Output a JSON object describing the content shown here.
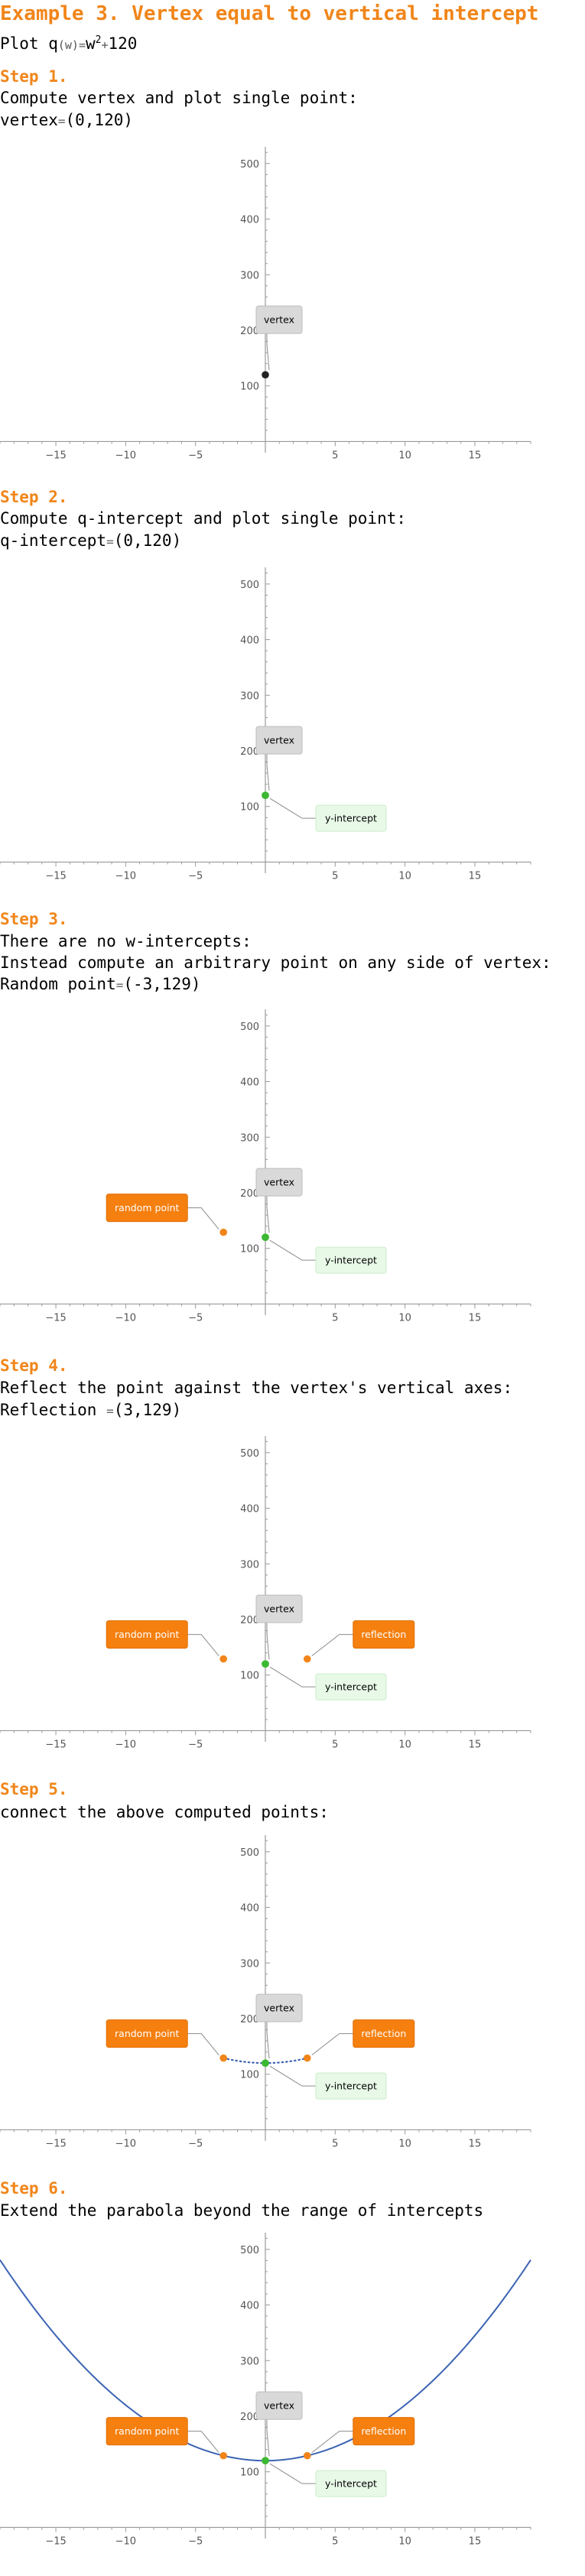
{
  "title": "Example 3. Vertex equal to vertical intercept",
  "subtitle": {
    "prefix": "Plot q",
    "arg": "(w)",
    "eq": "=",
    "rhs_base": "w",
    "rhs_exp": "2",
    "rhs_plus": "+",
    "rhs_const": "120"
  },
  "steps": [
    {
      "label": "Step 1.",
      "lines": [
        {
          "text": "Compute vertex and plot single point:"
        },
        {
          "text": "vertex",
          "eq": "=",
          "val": "(0,120)"
        }
      ]
    },
    {
      "label": "Step 2.",
      "lines": [
        {
          "text": "Compute q-intercept and plot single point:"
        },
        {
          "text": "q-intercept",
          "eq": "=",
          "val": "(0,120)"
        }
      ]
    },
    {
      "label": "Step 3.",
      "lines": [
        {
          "text": "There are no w-intercepts:"
        },
        {
          "text": "Instead compute an arbitrary point on any side of vertex:"
        },
        {
          "text": "Random point",
          "eq": "=",
          "val": "(-3,129)"
        }
      ]
    },
    {
      "label": "Step 4.",
      "lines": [
        {
          "text": "Reflect the point against the vertex's vertical axes:"
        },
        {
          "text": "Reflection ",
          "eq": "=",
          "val": "(3,129)"
        }
      ]
    },
    {
      "label": "Step 5.",
      "lines": [
        {
          "text": "connect the above computed points:"
        }
      ]
    },
    {
      "label": "Step 6.",
      "lines": [
        {
          "text": "Extend the parabola beyond the range of intercepts"
        }
      ]
    }
  ],
  "chart_data": [
    {
      "type": "scatter",
      "xlim": [
        -19,
        19
      ],
      "ylim": [
        -20,
        530
      ],
      "x_ticks": [
        -15,
        -10,
        -5,
        5,
        10,
        15
      ],
      "y_ticks": [
        100,
        200,
        300,
        400,
        500
      ],
      "points": [
        {
          "x": 0,
          "y": 120,
          "color": "#222222",
          "label": "vertex"
        }
      ]
    },
    {
      "type": "scatter",
      "xlim": [
        -19,
        19
      ],
      "ylim": [
        -20,
        530
      ],
      "x_ticks": [
        -15,
        -10,
        -5,
        5,
        10,
        15
      ],
      "y_ticks": [
        100,
        200,
        300,
        400,
        500
      ],
      "points": [
        {
          "x": 0,
          "y": 120,
          "color": "#3CB832",
          "label": "vertex"
        },
        {
          "x": 0,
          "y": 120,
          "color": "#3CB832",
          "label": "y-intercept"
        }
      ]
    },
    {
      "type": "scatter",
      "xlim": [
        -19,
        19
      ],
      "ylim": [
        -20,
        530
      ],
      "x_ticks": [
        -15,
        -10,
        -5,
        5,
        10,
        15
      ],
      "y_ticks": [
        100,
        200,
        300,
        400,
        500
      ],
      "points": [
        {
          "x": 0,
          "y": 120,
          "color": "#3CB832",
          "label": "vertex"
        },
        {
          "x": 0,
          "y": 120,
          "color": "#3CB832",
          "label": "y-intercept"
        },
        {
          "x": -3,
          "y": 129,
          "color": "#F18519",
          "label": "random point"
        }
      ]
    },
    {
      "type": "scatter",
      "xlim": [
        -19,
        19
      ],
      "ylim": [
        -20,
        530
      ],
      "x_ticks": [
        -15,
        -10,
        -5,
        5,
        10,
        15
      ],
      "y_ticks": [
        100,
        200,
        300,
        400,
        500
      ],
      "points": [
        {
          "x": 0,
          "y": 120,
          "color": "#3CB832",
          "label": "vertex"
        },
        {
          "x": 0,
          "y": 120,
          "color": "#3CB832",
          "label": "y-intercept"
        },
        {
          "x": -3,
          "y": 129,
          "color": "#F18519",
          "label": "random point"
        },
        {
          "x": 3,
          "y": 129,
          "color": "#F18519",
          "label": "reflection"
        }
      ]
    },
    {
      "type": "line",
      "xlim": [
        -19,
        19
      ],
      "ylim": [
        -20,
        530
      ],
      "x_ticks": [
        -15,
        -10,
        -5,
        5,
        10,
        15
      ],
      "y_ticks": [
        100,
        200,
        300,
        400,
        500
      ],
      "curve": {
        "style": "dotted",
        "color": "#3C64B4",
        "x_range": [
          -3,
          3
        ],
        "function": "w^2+120"
      },
      "points": [
        {
          "x": 0,
          "y": 120,
          "color": "#3CB832",
          "label": "vertex"
        },
        {
          "x": 0,
          "y": 120,
          "color": "#3CB832",
          "label": "y-intercept"
        },
        {
          "x": -3,
          "y": 129,
          "color": "#F18519",
          "label": "random point"
        },
        {
          "x": 3,
          "y": 129,
          "color": "#F18519",
          "label": "reflection"
        }
      ]
    },
    {
      "type": "line",
      "xlim": [
        -19,
        19
      ],
      "ylim": [
        -20,
        530
      ],
      "x_ticks": [
        -15,
        -10,
        -5,
        5,
        10,
        15
      ],
      "y_ticks": [
        100,
        200,
        300,
        400,
        500
      ],
      "curve": {
        "style": "solid",
        "color": "#3C64B4",
        "x_range": [
          -19,
          19
        ],
        "function": "w^2+120"
      },
      "points": [
        {
          "x": 0,
          "y": 120,
          "color": "#3CB832",
          "label": "vertex"
        },
        {
          "x": 0,
          "y": 120,
          "color": "#3CB832",
          "label": "y-intercept"
        },
        {
          "x": -3,
          "y": 129,
          "color": "#F18519",
          "label": "random point"
        },
        {
          "x": 3,
          "y": 129,
          "color": "#F18519",
          "label": "reflection"
        }
      ]
    }
  ]
}
